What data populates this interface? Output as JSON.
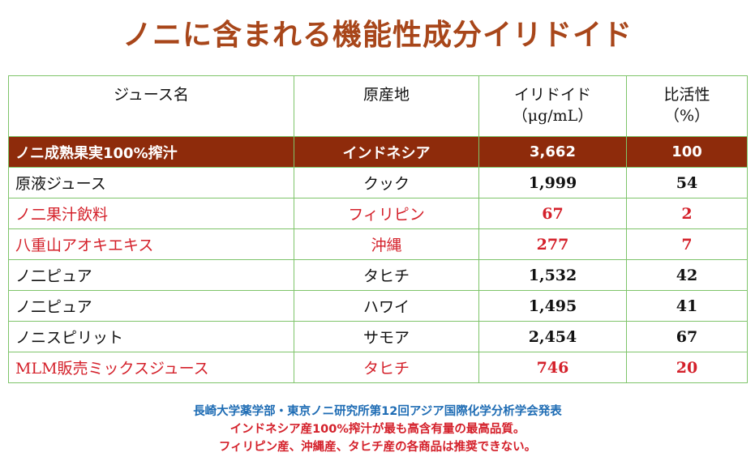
{
  "title": "ノニに含まれる機能性成分イリドイド",
  "table": {
    "headers": [
      "ジュース名",
      "原産地",
      "イリドイド",
      "（μg/mL）",
      "比活性",
      "（%）"
    ],
    "rows": [
      {
        "name": "ノニ成熟果実100%搾汁",
        "origin": "インドネシア",
        "iridoid": "3,662",
        "activity": "100",
        "style": "highlight"
      },
      {
        "name": "原液ジュース",
        "origin": "クック",
        "iridoid": "1,999",
        "activity": "54",
        "style": "normal"
      },
      {
        "name": "ノ二果汁飲料",
        "origin": "フィリピン",
        "iridoid": "67",
        "activity": "2",
        "style": "red"
      },
      {
        "name": "八重山アオキエキス",
        "origin": "沖縄",
        "iridoid": "277",
        "activity": "7",
        "style": "red"
      },
      {
        "name": "ノ二ピュア",
        "origin": "タヒチ",
        "iridoid": "1,532",
        "activity": "42",
        "style": "normal"
      },
      {
        "name": "ノ二ピュア",
        "origin": "ハワイ",
        "iridoid": "1,495",
        "activity": "41",
        "style": "normal"
      },
      {
        "name": "ノニスピリット",
        "origin": "サモア",
        "iridoid": "2,454",
        "activity": "67",
        "style": "normal"
      },
      {
        "name": "MLM販売ミックスジュース",
        "origin": "タヒチ",
        "iridoid": "746",
        "activity": "20",
        "style": "red"
      }
    ]
  },
  "footer": {
    "line1": "長崎大学薬学部・東京ノニ研究所第12回アジア国際化学分析学会発表",
    "line2": "インドネシア産100%搾汁が最も高含有量の最高品質。",
    "line3": "フィリピン産、沖縄産、タヒチ産の各商品は推奨できない。"
  },
  "colors": {
    "title": "#a8461a",
    "highlight_row_bg": "#8e2b0b",
    "border": "#7ec46a",
    "red_text": "#d4202a",
    "blue_text": "#1e6cb4"
  }
}
